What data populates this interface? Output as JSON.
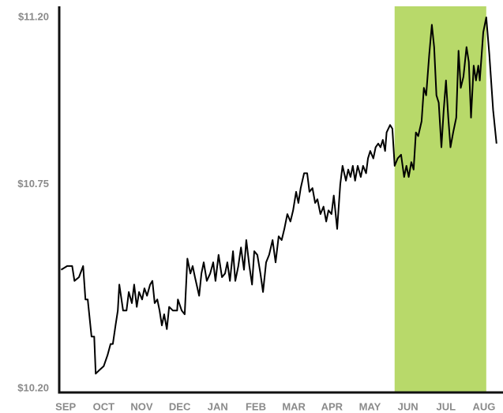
{
  "chart_data": {
    "type": "line",
    "xlim": [
      -0.17,
      11.5
    ],
    "xticks": [
      {
        "value": 0,
        "label": "SEP"
      },
      {
        "value": 1,
        "label": "OCT"
      },
      {
        "value": 2,
        "label": "NOV"
      },
      {
        "value": 3,
        "label": "DEC"
      },
      {
        "value": 4,
        "label": "JAN"
      },
      {
        "value": 5,
        "label": "FEB"
      },
      {
        "value": 6,
        "label": "MAR"
      },
      {
        "value": 7,
        "label": "APR"
      },
      {
        "value": 8,
        "label": "MAY"
      },
      {
        "value": 9,
        "label": "JUN"
      },
      {
        "value": 10,
        "label": "JUL"
      },
      {
        "value": 11,
        "label": "AUG"
      }
    ],
    "ylim": [
      10.2,
      11.2
    ],
    "yticks": [
      {
        "value": 10.2,
        "label": "$10.20"
      },
      {
        "value": 10.75,
        "label": "$10.75"
      },
      {
        "value": 11.2,
        "label": "$11.20"
      }
    ],
    "highlight": {
      "xlim": [
        8.65,
        11.06
      ],
      "color": "#b8d96a"
    },
    "color": "#000000",
    "x": [
      -0.12,
      0.04,
      0.17,
      0.23,
      0.35,
      0.46,
      0.52,
      0.58,
      0.68,
      0.75,
      0.79,
      0.89,
      1.0,
      1.1,
      1.18,
      1.24,
      1.31,
      1.37,
      1.41,
      1.51,
      1.6,
      1.66,
      1.74,
      1.8,
      1.87,
      1.93,
      2.01,
      2.07,
      2.14,
      2.22,
      2.28,
      2.34,
      2.41,
      2.47,
      2.53,
      2.59,
      2.66,
      2.72,
      2.82,
      2.93,
      2.95,
      3.05,
      3.13,
      3.2,
      3.28,
      3.34,
      3.4,
      3.51,
      3.57,
      3.63,
      3.71,
      3.8,
      3.88,
      3.94,
      4.02,
      4.11,
      4.19,
      4.25,
      4.32,
      4.4,
      4.46,
      4.54,
      4.61,
      4.69,
      4.75,
      4.83,
      4.9,
      4.96,
      5.04,
      5.12,
      5.19,
      5.27,
      5.35,
      5.44,
      5.52,
      5.6,
      5.68,
      5.75,
      5.83,
      5.91,
      5.98,
      6.06,
      6.12,
      6.18,
      6.27,
      6.35,
      6.41,
      6.49,
      6.56,
      6.62,
      6.7,
      6.78,
      6.85,
      6.91,
      6.99,
      7.05,
      7.14,
      7.22,
      7.28,
      7.37,
      7.43,
      7.49,
      7.55,
      7.61,
      7.68,
      7.76,
      7.82,
      7.9,
      7.95,
      8.01,
      8.09,
      8.15,
      8.22,
      8.28,
      8.34,
      8.4,
      8.44,
      8.53,
      8.59,
      8.65,
      8.73,
      8.82,
      8.9,
      8.96,
      9.02,
      9.09,
      9.15,
      9.21,
      9.27,
      9.36,
      9.42,
      9.48,
      9.56,
      9.63,
      9.69,
      9.75,
      9.81,
      9.88,
      9.94,
      10.0,
      10.06,
      10.12,
      10.19,
      10.27,
      10.33,
      10.39,
      10.46,
      10.54,
      10.6,
      10.66,
      10.73,
      10.79,
      10.85,
      10.89,
      10.98,
      11.06,
      11.14,
      11.24,
      11.33
    ],
    "values": [
      10.52,
      10.53,
      10.53,
      10.49,
      10.5,
      10.53,
      10.44,
      10.44,
      10.34,
      10.34,
      10.24,
      10.25,
      10.26,
      10.29,
      10.32,
      10.32,
      10.37,
      10.41,
      10.48,
      10.41,
      10.41,
      10.46,
      10.43,
      10.48,
      10.42,
      10.46,
      10.44,
      10.47,
      10.45,
      10.48,
      10.49,
      10.43,
      10.44,
      10.41,
      10.37,
      10.4,
      10.36,
      10.42,
      10.41,
      10.41,
      10.44,
      10.41,
      10.4,
      10.55,
      10.51,
      10.53,
      10.5,
      10.45,
      10.51,
      10.54,
      10.49,
      10.51,
      10.54,
      10.49,
      10.56,
      10.5,
      10.51,
      10.54,
      10.49,
      10.57,
      10.49,
      10.53,
      10.58,
      10.52,
      10.6,
      10.53,
      10.48,
      10.57,
      10.56,
      10.51,
      10.46,
      10.54,
      10.56,
      10.6,
      10.54,
      10.61,
      10.6,
      10.63,
      10.67,
      10.65,
      10.68,
      10.73,
      10.7,
      10.74,
      10.78,
      10.78,
      10.73,
      10.74,
      10.7,
      10.71,
      10.67,
      10.69,
      10.65,
      10.68,
      10.67,
      10.72,
      10.63,
      10.75,
      10.8,
      10.76,
      10.79,
      10.77,
      10.8,
      10.76,
      10.8,
      10.77,
      10.8,
      10.78,
      10.82,
      10.84,
      10.82,
      10.85,
      10.86,
      10.85,
      10.87,
      10.84,
      10.89,
      10.91,
      10.9,
      10.8,
      10.82,
      10.83,
      10.77,
      10.8,
      10.77,
      10.81,
      10.79,
      10.89,
      10.88,
      10.92,
      11.01,
      10.99,
      11.1,
      11.18,
      11.12,
      10.99,
      10.97,
      10.85,
      10.95,
      11.03,
      10.93,
      10.85,
      10.89,
      10.93,
      11.11,
      11.01,
      11.04,
      11.12,
      11.08,
      10.93,
      11.07,
      11.03,
      11.07,
      11.03,
      11.16,
      11.2,
      11.1,
      10.95,
      10.86
    ]
  }
}
